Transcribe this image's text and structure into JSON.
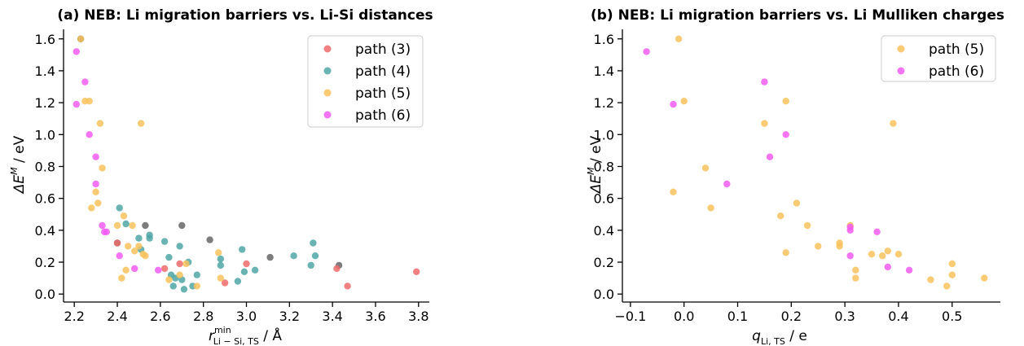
{
  "chart_data": [
    {
      "type": "scatter",
      "title": "(a) NEB: Li migration barriers vs. Li-Si distances",
      "xlabel": {
        "base": "r",
        "sup": "min",
        "sub": "Li − Si, TS",
        "unit": " / Å"
      },
      "ylabel": {
        "base": "ΔE",
        "sup": "M",
        "unit": " / eV"
      },
      "xlim": [
        2.15,
        3.85
      ],
      "ylim": [
        -0.05,
        1.66
      ],
      "xticks": [
        2.2,
        2.4,
        2.6,
        2.8,
        3.0,
        3.2,
        3.4,
        3.6,
        3.8
      ],
      "xtick_labels": [
        "2.2",
        "2.4",
        "2.6",
        "2.8",
        "3.0",
        "3.2",
        "3.4",
        "3.6",
        "3.8"
      ],
      "yticks": [
        0.0,
        0.2,
        0.4,
        0.6,
        0.8,
        1.0,
        1.2,
        1.4,
        1.6
      ],
      "ytick_labels": [
        "0.0",
        "0.2",
        "0.4",
        "0.6",
        "0.8",
        "1.0",
        "1.2",
        "1.4",
        "1.6"
      ],
      "legend_position": "top-right",
      "series": [
        {
          "name": "path (3)",
          "color": "#ee6b6b",
          "x": [
            2.4,
            2.62,
            2.69,
            2.9,
            3.0,
            3.42,
            3.47,
            3.79
          ],
          "y": [
            0.32,
            0.16,
            0.19,
            0.07,
            0.19,
            0.16,
            0.05,
            0.14
          ]
        },
        {
          "name": "path (4)",
          "color": "#4fa6a6",
          "x": [
            2.41,
            2.44,
            2.5,
            2.51,
            2.55,
            2.55,
            2.62,
            2.64,
            2.65,
            2.66,
            2.67,
            2.69,
            2.7,
            2.71,
            2.73,
            2.75,
            2.77,
            2.88,
            2.88,
            2.96,
            2.98,
            2.99,
            3.04,
            3.22,
            3.3,
            3.31,
            3.32
          ],
          "y": [
            0.54,
            0.44,
            0.35,
            0.28,
            0.37,
            0.35,
            0.33,
            0.23,
            0.12,
            0.05,
            0.1,
            0.3,
            0.09,
            0.03,
            0.2,
            0.05,
            0.12,
            0.22,
            0.18,
            0.08,
            0.28,
            0.14,
            0.15,
            0.24,
            0.18,
            0.32,
            0.24
          ]
        },
        {
          "name": "path (5)",
          "color": "#f8c25c",
          "x": [
            2.23,
            2.25,
            2.27,
            2.28,
            2.3,
            2.31,
            2.32,
            2.33,
            2.4,
            2.42,
            2.43,
            2.44,
            2.45,
            2.47,
            2.48,
            2.5,
            2.51,
            2.52,
            2.53,
            2.64,
            2.69,
            2.72,
            2.77,
            2.87,
            2.88
          ],
          "y": [
            1.6,
            1.21,
            1.21,
            0.54,
            0.64,
            0.57,
            1.07,
            0.79,
            0.43,
            0.1,
            0.49,
            0.15,
            0.3,
            0.43,
            0.27,
            0.3,
            1.07,
            0.25,
            0.24,
            0.09,
            0.12,
            0.19,
            0.05,
            0.26,
            0.1
          ]
        },
        {
          "name": "path (6)",
          "color": "#f25cf2",
          "x": [
            2.21,
            2.21,
            2.25,
            2.27,
            2.3,
            2.3,
            2.33,
            2.34,
            2.35,
            2.41,
            2.48,
            2.59
          ],
          "y": [
            1.52,
            1.19,
            1.33,
            1.0,
            0.86,
            0.69,
            0.43,
            0.39,
            0.39,
            0.24,
            0.16,
            0.15
          ]
        }
      ],
      "unlisted_points": {
        "color": "#666666",
        "x": [
          2.23,
          2.4,
          2.53,
          2.7,
          2.83,
          3.11,
          3.43
        ],
        "y": [
          1.6,
          0.32,
          0.43,
          0.43,
          0.34,
          0.23,
          0.18
        ]
      }
    },
    {
      "type": "scatter",
      "title": "(b) NEB: Li migration barriers vs. Li Mulliken charges",
      "xlabel": {
        "base": "q",
        "sub": "Li, TS",
        "unit": " / e"
      },
      "ylabel": {
        "base": "ΔE",
        "sup": "M",
        "unit": " / eV"
      },
      "xlim": [
        -0.115,
        0.59
      ],
      "ylim": [
        -0.05,
        1.66
      ],
      "xticks": [
        -0.1,
        0.0,
        0.1,
        0.2,
        0.3,
        0.4,
        0.5
      ],
      "xtick_labels": [
        "−0.1",
        "0.0",
        "0.1",
        "0.2",
        "0.3",
        "0.4",
        "0.5"
      ],
      "yticks": [
        0.0,
        0.2,
        0.4,
        0.6,
        0.8,
        1.0,
        1.2,
        1.4,
        1.6
      ],
      "ytick_labels": [
        "0.0",
        "0.2",
        "0.4",
        "0.6",
        "0.8",
        "1.0",
        "1.2",
        "1.4",
        "1.6"
      ],
      "legend_position": "top-right",
      "series": [
        {
          "name": "path (5)",
          "color": "#f8c25c",
          "x": [
            -0.02,
            -0.01,
            0.0,
            0.04,
            0.05,
            0.15,
            0.18,
            0.19,
            0.19,
            0.21,
            0.23,
            0.25,
            0.29,
            0.29,
            0.31,
            0.32,
            0.32,
            0.35,
            0.37,
            0.38,
            0.39,
            0.4,
            0.46,
            0.49,
            0.5,
            0.5,
            0.56
          ],
          "y": [
            0.64,
            1.6,
            1.21,
            0.79,
            0.54,
            1.07,
            0.49,
            1.21,
            0.26,
            0.57,
            0.43,
            0.3,
            0.32,
            0.3,
            0.43,
            0.15,
            0.1,
            0.25,
            0.24,
            0.27,
            1.07,
            0.25,
            0.09,
            0.05,
            0.12,
            0.19,
            0.1
          ]
        },
        {
          "name": "path (6)",
          "color": "#f25cf2",
          "x": [
            -0.07,
            -0.02,
            0.08,
            0.15,
            0.16,
            0.19,
            0.31,
            0.31,
            0.31,
            0.36,
            0.38,
            0.42
          ],
          "y": [
            1.52,
            1.19,
            0.69,
            1.33,
            0.86,
            1.0,
            0.42,
            0.4,
            0.24,
            0.39,
            0.17,
            0.15
          ]
        }
      ]
    }
  ]
}
